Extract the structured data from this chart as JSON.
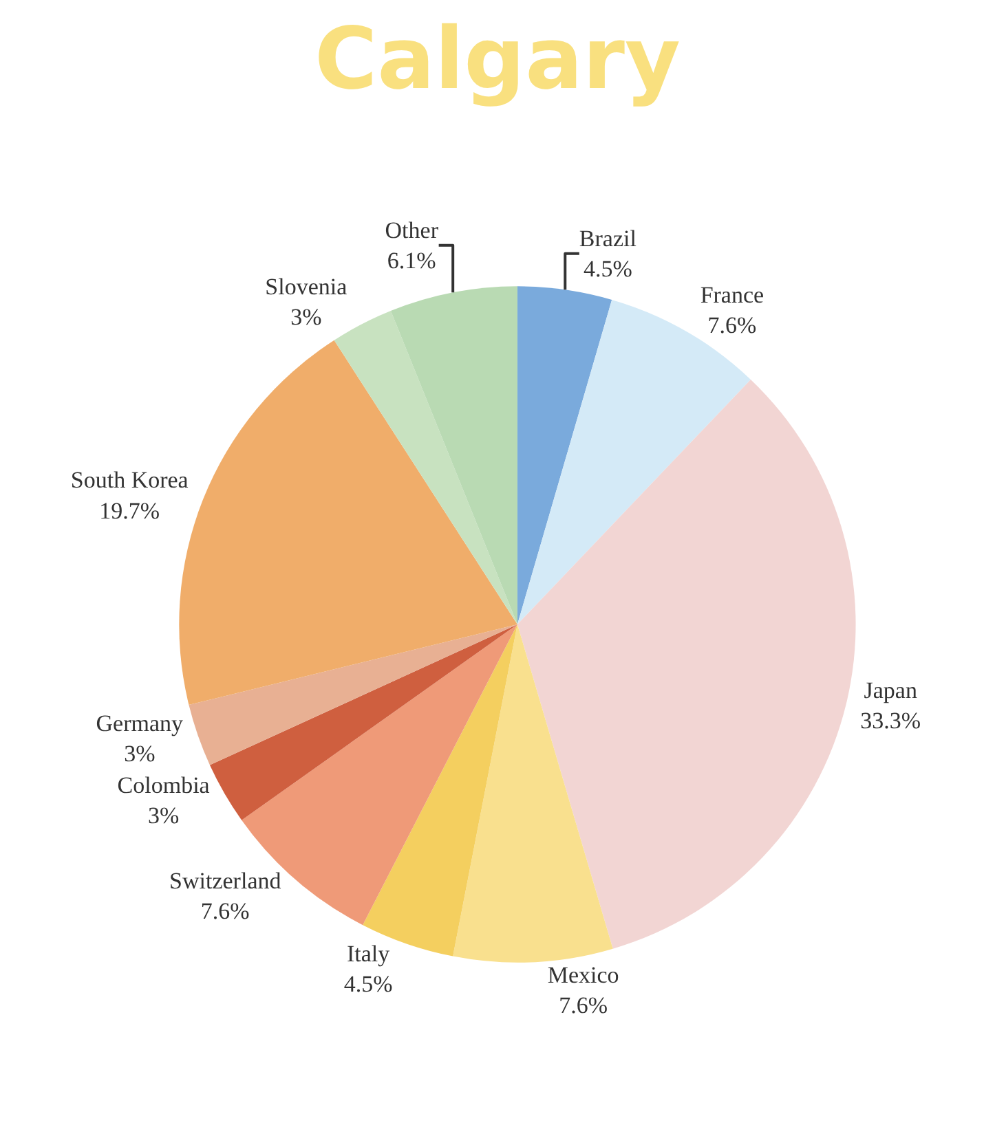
{
  "chart_data": {
    "type": "pie",
    "title": "Calgary",
    "categories": [
      "Brazil",
      "France",
      "Japan",
      "Mexico",
      "Italy",
      "Switzerland",
      "Colombia",
      "Germany",
      "South Korea",
      "Slovenia",
      "Other"
    ],
    "values": [
      4.5,
      7.6,
      33.3,
      7.6,
      4.5,
      7.6,
      3,
      3,
      19.7,
      3,
      6.1
    ],
    "value_labels": [
      "4.5%",
      "7.6%",
      "33.3%",
      "7.6%",
      "4.5%",
      "7.6%",
      "3%",
      "3%",
      "19.7%",
      "3%",
      "6.1%"
    ],
    "colors": [
      "#7aaadc",
      "#d4eaf7",
      "#f2d5d3",
      "#f9e08e",
      "#f4cf5f",
      "#ef9a78",
      "#cf5f3f",
      "#e8b093",
      "#f0ad6a",
      "#c8e2c0",
      "#b9dab3"
    ],
    "legend": false
  }
}
